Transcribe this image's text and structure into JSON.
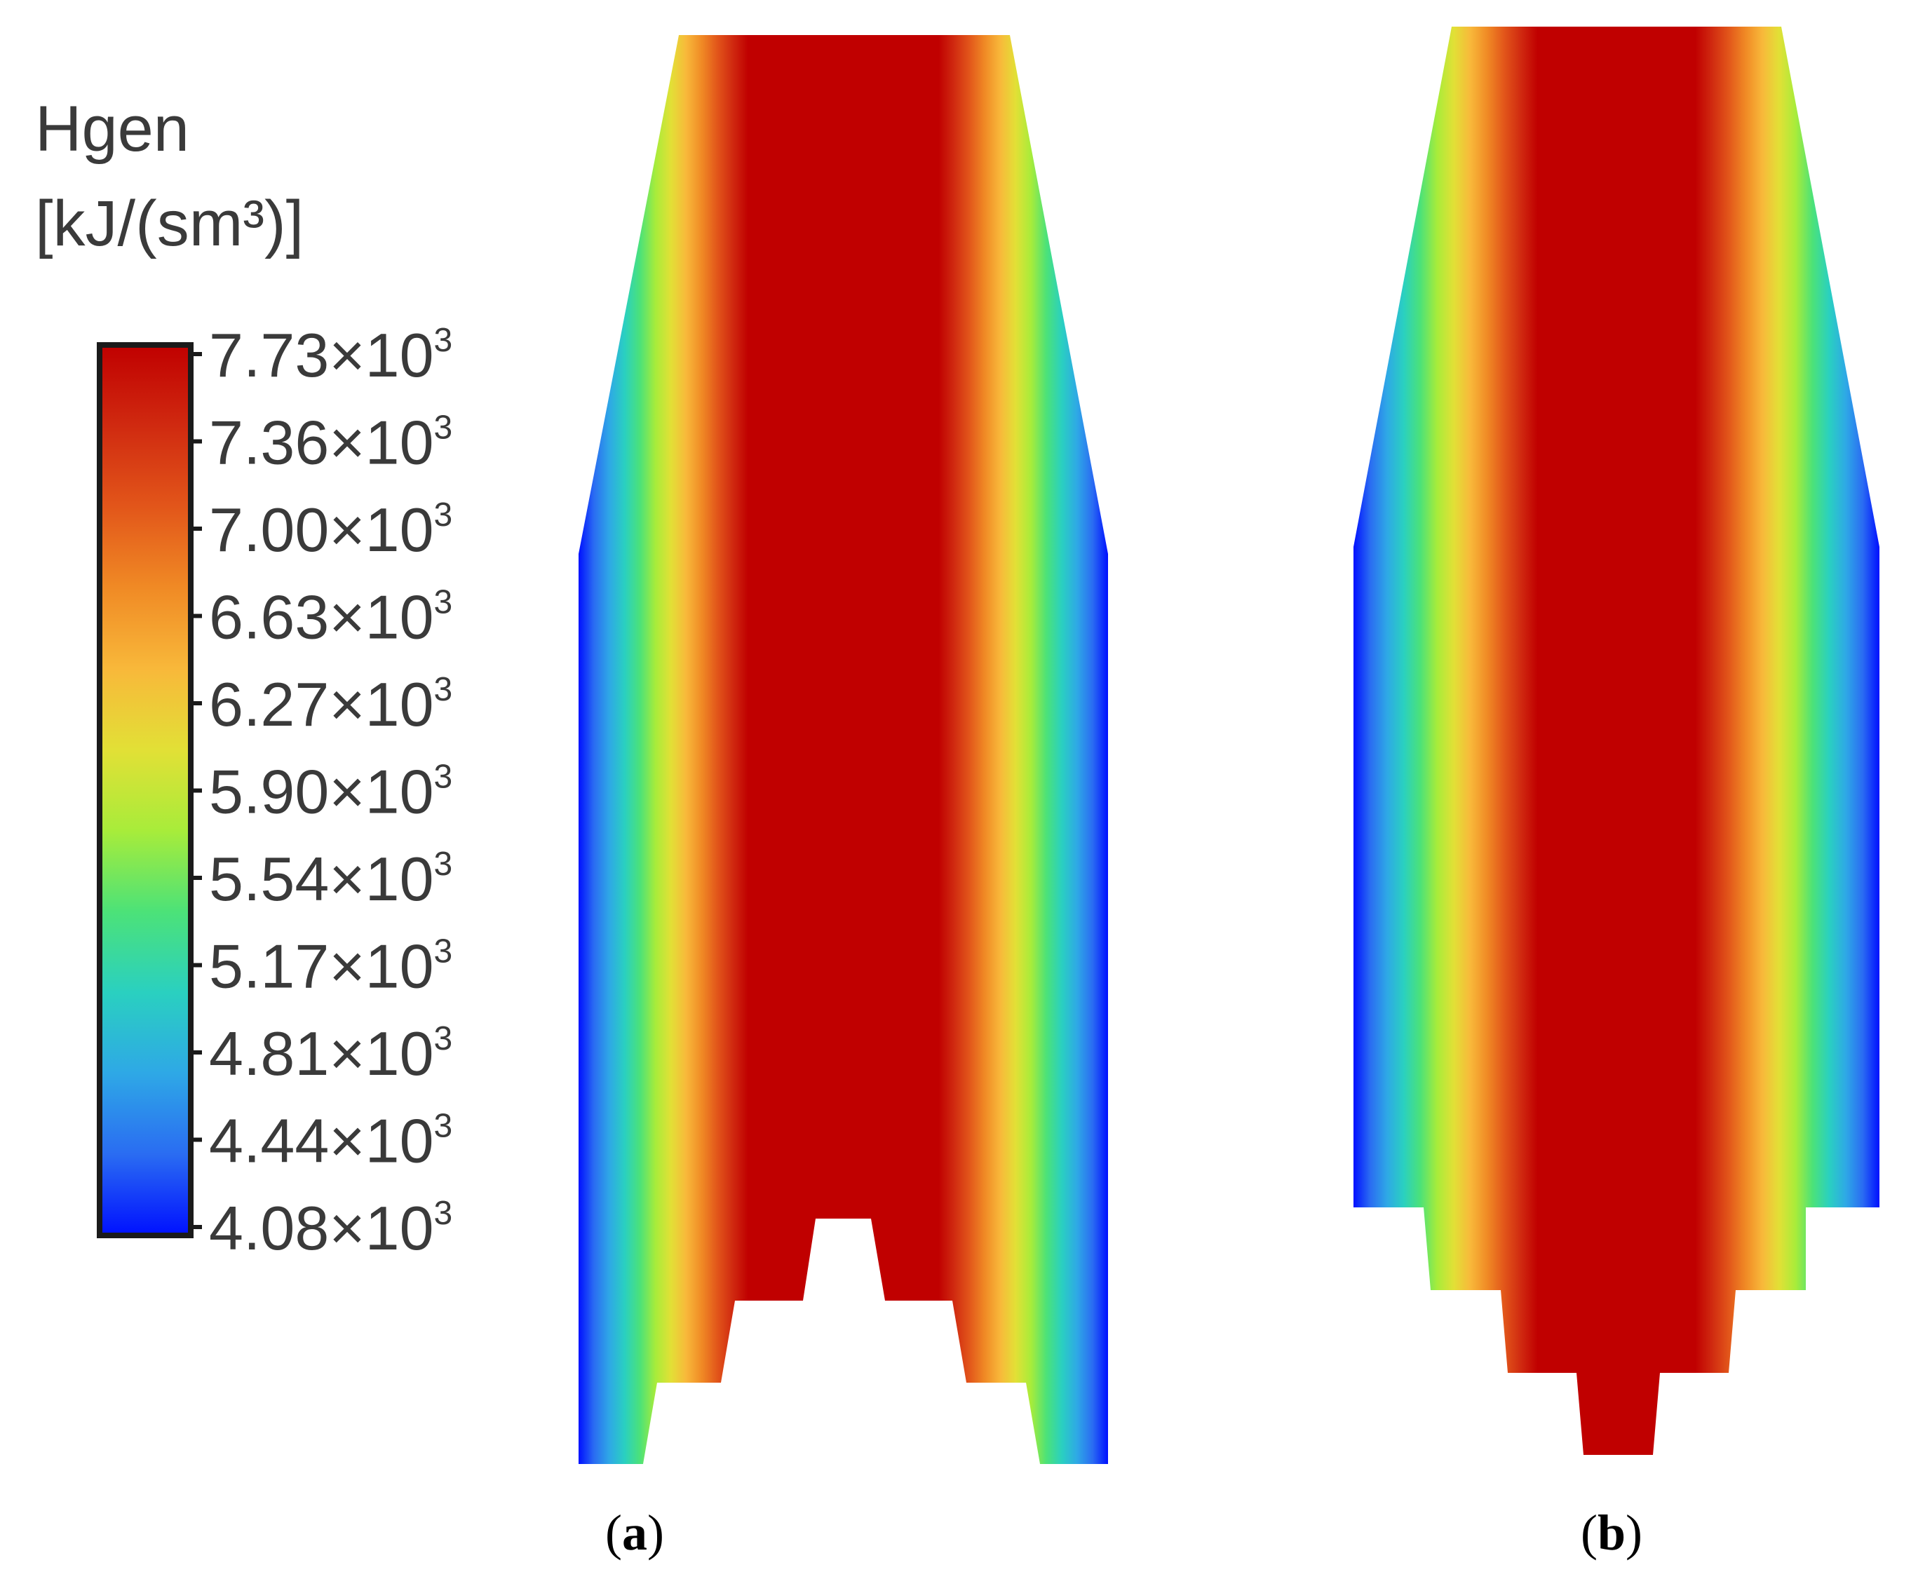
{
  "legend": {
    "title_line1": "Hgen",
    "title_line2": "[kJ/(sm³)]",
    "ticks": [
      {
        "mantissa": "7.73",
        "exp": "3"
      },
      {
        "mantissa": "7.36",
        "exp": "3"
      },
      {
        "mantissa": "7.00",
        "exp": "3"
      },
      {
        "mantissa": "6.63",
        "exp": "3"
      },
      {
        "mantissa": "6.27",
        "exp": "3"
      },
      {
        "mantissa": "5.90",
        "exp": "3"
      },
      {
        "mantissa": "5.54",
        "exp": "3"
      },
      {
        "mantissa": "5.17",
        "exp": "3"
      },
      {
        "mantissa": "4.81",
        "exp": "3"
      },
      {
        "mantissa": "4.44",
        "exp": "3"
      },
      {
        "mantissa": "4.08",
        "exp": "3"
      }
    ],
    "colors": [
      "#c00000",
      "#d02a10",
      "#e2561a",
      "#f08a25",
      "#f8b83a",
      "#e2e036",
      "#a8ec3a",
      "#4ce278",
      "#2ad0c0",
      "#2ea8e6",
      "#2a6cf2",
      "#0010ff"
    ]
  },
  "panels": [
    {
      "label_open": "(",
      "label_letter": "a",
      "label_close": ")"
    },
    {
      "label_open": "(",
      "label_letter": "b",
      "label_close": ")"
    }
  ]
}
